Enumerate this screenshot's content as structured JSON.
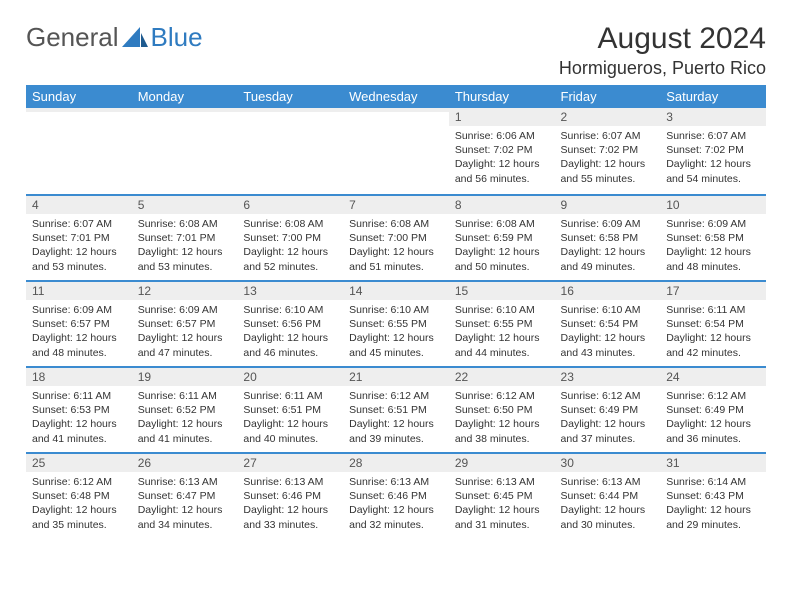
{
  "logo": {
    "text1": "General",
    "text2": "Blue"
  },
  "title": "August 2024",
  "location": "Hormigueros, Puerto Rico",
  "day_headers": [
    "Sunday",
    "Monday",
    "Tuesday",
    "Wednesday",
    "Thursday",
    "Friday",
    "Saturday"
  ],
  "colors": {
    "header_bg": "#3b8bd0",
    "header_text": "#ffffff",
    "daynum_bg": "#eeeeee",
    "week_divider": "#3b8bd0",
    "body_text": "#333333"
  },
  "weeks": [
    [
      {
        "date": "",
        "sunrise": "",
        "sunset": "",
        "daylight1": "",
        "daylight2": ""
      },
      {
        "date": "",
        "sunrise": "",
        "sunset": "",
        "daylight1": "",
        "daylight2": ""
      },
      {
        "date": "",
        "sunrise": "",
        "sunset": "",
        "daylight1": "",
        "daylight2": ""
      },
      {
        "date": "",
        "sunrise": "",
        "sunset": "",
        "daylight1": "",
        "daylight2": ""
      },
      {
        "date": "1",
        "sunrise": "Sunrise: 6:06 AM",
        "sunset": "Sunset: 7:02 PM",
        "daylight1": "Daylight: 12 hours",
        "daylight2": "and 56 minutes."
      },
      {
        "date": "2",
        "sunrise": "Sunrise: 6:07 AM",
        "sunset": "Sunset: 7:02 PM",
        "daylight1": "Daylight: 12 hours",
        "daylight2": "and 55 minutes."
      },
      {
        "date": "3",
        "sunrise": "Sunrise: 6:07 AM",
        "sunset": "Sunset: 7:02 PM",
        "daylight1": "Daylight: 12 hours",
        "daylight2": "and 54 minutes."
      }
    ],
    [
      {
        "date": "4",
        "sunrise": "Sunrise: 6:07 AM",
        "sunset": "Sunset: 7:01 PM",
        "daylight1": "Daylight: 12 hours",
        "daylight2": "and 53 minutes."
      },
      {
        "date": "5",
        "sunrise": "Sunrise: 6:08 AM",
        "sunset": "Sunset: 7:01 PM",
        "daylight1": "Daylight: 12 hours",
        "daylight2": "and 53 minutes."
      },
      {
        "date": "6",
        "sunrise": "Sunrise: 6:08 AM",
        "sunset": "Sunset: 7:00 PM",
        "daylight1": "Daylight: 12 hours",
        "daylight2": "and 52 minutes."
      },
      {
        "date": "7",
        "sunrise": "Sunrise: 6:08 AM",
        "sunset": "Sunset: 7:00 PM",
        "daylight1": "Daylight: 12 hours",
        "daylight2": "and 51 minutes."
      },
      {
        "date": "8",
        "sunrise": "Sunrise: 6:08 AM",
        "sunset": "Sunset: 6:59 PM",
        "daylight1": "Daylight: 12 hours",
        "daylight2": "and 50 minutes."
      },
      {
        "date": "9",
        "sunrise": "Sunrise: 6:09 AM",
        "sunset": "Sunset: 6:58 PM",
        "daylight1": "Daylight: 12 hours",
        "daylight2": "and 49 minutes."
      },
      {
        "date": "10",
        "sunrise": "Sunrise: 6:09 AM",
        "sunset": "Sunset: 6:58 PM",
        "daylight1": "Daylight: 12 hours",
        "daylight2": "and 48 minutes."
      }
    ],
    [
      {
        "date": "11",
        "sunrise": "Sunrise: 6:09 AM",
        "sunset": "Sunset: 6:57 PM",
        "daylight1": "Daylight: 12 hours",
        "daylight2": "and 48 minutes."
      },
      {
        "date": "12",
        "sunrise": "Sunrise: 6:09 AM",
        "sunset": "Sunset: 6:57 PM",
        "daylight1": "Daylight: 12 hours",
        "daylight2": "and 47 minutes."
      },
      {
        "date": "13",
        "sunrise": "Sunrise: 6:10 AM",
        "sunset": "Sunset: 6:56 PM",
        "daylight1": "Daylight: 12 hours",
        "daylight2": "and 46 minutes."
      },
      {
        "date": "14",
        "sunrise": "Sunrise: 6:10 AM",
        "sunset": "Sunset: 6:55 PM",
        "daylight1": "Daylight: 12 hours",
        "daylight2": "and 45 minutes."
      },
      {
        "date": "15",
        "sunrise": "Sunrise: 6:10 AM",
        "sunset": "Sunset: 6:55 PM",
        "daylight1": "Daylight: 12 hours",
        "daylight2": "and 44 minutes."
      },
      {
        "date": "16",
        "sunrise": "Sunrise: 6:10 AM",
        "sunset": "Sunset: 6:54 PM",
        "daylight1": "Daylight: 12 hours",
        "daylight2": "and 43 minutes."
      },
      {
        "date": "17",
        "sunrise": "Sunrise: 6:11 AM",
        "sunset": "Sunset: 6:54 PM",
        "daylight1": "Daylight: 12 hours",
        "daylight2": "and 42 minutes."
      }
    ],
    [
      {
        "date": "18",
        "sunrise": "Sunrise: 6:11 AM",
        "sunset": "Sunset: 6:53 PM",
        "daylight1": "Daylight: 12 hours",
        "daylight2": "and 41 minutes."
      },
      {
        "date": "19",
        "sunrise": "Sunrise: 6:11 AM",
        "sunset": "Sunset: 6:52 PM",
        "daylight1": "Daylight: 12 hours",
        "daylight2": "and 41 minutes."
      },
      {
        "date": "20",
        "sunrise": "Sunrise: 6:11 AM",
        "sunset": "Sunset: 6:51 PM",
        "daylight1": "Daylight: 12 hours",
        "daylight2": "and 40 minutes."
      },
      {
        "date": "21",
        "sunrise": "Sunrise: 6:12 AM",
        "sunset": "Sunset: 6:51 PM",
        "daylight1": "Daylight: 12 hours",
        "daylight2": "and 39 minutes."
      },
      {
        "date": "22",
        "sunrise": "Sunrise: 6:12 AM",
        "sunset": "Sunset: 6:50 PM",
        "daylight1": "Daylight: 12 hours",
        "daylight2": "and 38 minutes."
      },
      {
        "date": "23",
        "sunrise": "Sunrise: 6:12 AM",
        "sunset": "Sunset: 6:49 PM",
        "daylight1": "Daylight: 12 hours",
        "daylight2": "and 37 minutes."
      },
      {
        "date": "24",
        "sunrise": "Sunrise: 6:12 AM",
        "sunset": "Sunset: 6:49 PM",
        "daylight1": "Daylight: 12 hours",
        "daylight2": "and 36 minutes."
      }
    ],
    [
      {
        "date": "25",
        "sunrise": "Sunrise: 6:12 AM",
        "sunset": "Sunset: 6:48 PM",
        "daylight1": "Daylight: 12 hours",
        "daylight2": "and 35 minutes."
      },
      {
        "date": "26",
        "sunrise": "Sunrise: 6:13 AM",
        "sunset": "Sunset: 6:47 PM",
        "daylight1": "Daylight: 12 hours",
        "daylight2": "and 34 minutes."
      },
      {
        "date": "27",
        "sunrise": "Sunrise: 6:13 AM",
        "sunset": "Sunset: 6:46 PM",
        "daylight1": "Daylight: 12 hours",
        "daylight2": "and 33 minutes."
      },
      {
        "date": "28",
        "sunrise": "Sunrise: 6:13 AM",
        "sunset": "Sunset: 6:46 PM",
        "daylight1": "Daylight: 12 hours",
        "daylight2": "and 32 minutes."
      },
      {
        "date": "29",
        "sunrise": "Sunrise: 6:13 AM",
        "sunset": "Sunset: 6:45 PM",
        "daylight1": "Daylight: 12 hours",
        "daylight2": "and 31 minutes."
      },
      {
        "date": "30",
        "sunrise": "Sunrise: 6:13 AM",
        "sunset": "Sunset: 6:44 PM",
        "daylight1": "Daylight: 12 hours",
        "daylight2": "and 30 minutes."
      },
      {
        "date": "31",
        "sunrise": "Sunrise: 6:14 AM",
        "sunset": "Sunset: 6:43 PM",
        "daylight1": "Daylight: 12 hours",
        "daylight2": "and 29 minutes."
      }
    ]
  ]
}
